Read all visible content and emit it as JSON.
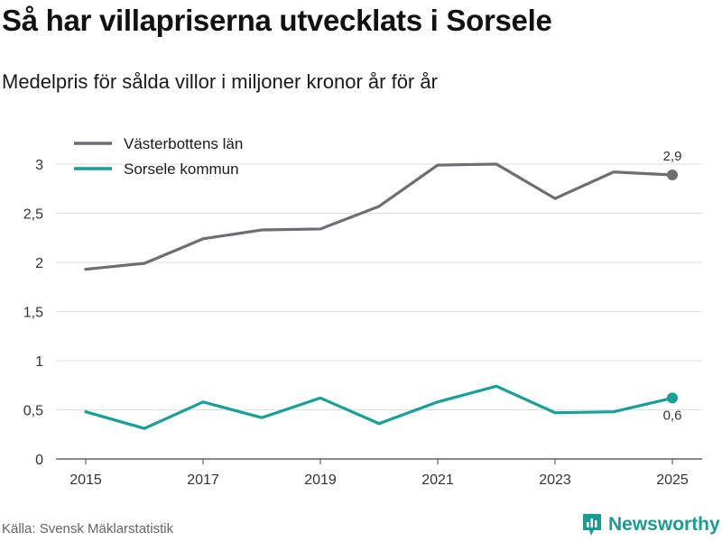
{
  "title": "Så har villapriserna utvecklats i Sorsele",
  "subtitle": "Medelpris för sålda villor i miljoner kronor år för år",
  "source": "Källa: Svensk Mäklarstatistik",
  "brand": {
    "name": "Newsworthy",
    "icon": "newsworthy-logo-icon"
  },
  "colors": {
    "lan": "#6e6d72",
    "kommun": "#16a096",
    "grid": "#dedede",
    "brand": "#1a9b95"
  },
  "chart_data": {
    "type": "line",
    "title": "Så har villapriserna utvecklats i Sorsele",
    "subtitle": "Medelpris för sålda villor i miljoner kronor år för år",
    "xlabel": "",
    "ylabel": "",
    "x": [
      2015,
      2016,
      2017,
      2018,
      2019,
      2020,
      2021,
      2022,
      2023,
      2024,
      2025
    ],
    "xlim": [
      2015,
      2025
    ],
    "ylim": [
      0,
      3
    ],
    "yticks": [
      0,
      0.5,
      1,
      1.5,
      2,
      2.5,
      3
    ],
    "ytick_labels": [
      "0",
      "0,5",
      "1",
      "1,5",
      "2",
      "2,5",
      "3"
    ],
    "xticks": [
      2015,
      2017,
      2019,
      2021,
      2023,
      2025
    ],
    "xtick_labels": [
      "2015",
      "2017",
      "2019",
      "2021",
      "2023",
      "2025"
    ],
    "grid": true,
    "legend_position": "top-left",
    "series": [
      {
        "name": "Västerbottens län",
        "values": [
          1.93,
          1.99,
          2.24,
          2.33,
          2.34,
          2.57,
          2.99,
          3.0,
          2.65,
          2.92,
          2.89
        ],
        "end_label": "2,9"
      },
      {
        "name": "Sorsele kommun",
        "values": [
          0.48,
          0.31,
          0.58,
          0.42,
          0.62,
          0.36,
          0.58,
          0.74,
          0.47,
          0.48,
          0.62
        ],
        "end_label": "0,6"
      }
    ]
  }
}
